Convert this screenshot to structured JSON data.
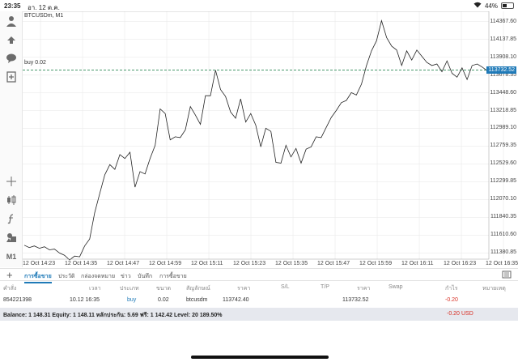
{
  "status": {
    "time": "23:35",
    "date": "อา. 12 ต.ค.",
    "battery": "44%",
    "battery_level": 0.44,
    "wifi_icon": "wifi-icon"
  },
  "toolbar": {
    "tools": [
      "person-icon",
      "trade-icon",
      "chat-icon",
      "add-chart-icon",
      "crosshair-icon",
      "candlestick-icon",
      "indicator-icon",
      "objects-icon",
      "timeframe-label"
    ],
    "timeframe": "M1"
  },
  "chart": {
    "symbol": "BTCUSDm, M1",
    "position_label": "buy 0.02",
    "current_price": "113732.52",
    "colors": {
      "line": "#222222",
      "position": "#2e8b57",
      "price_tag": "#1f7ab8",
      "grid": "#e6e6e6"
    }
  },
  "chart_data": {
    "type": "line",
    "title": "",
    "xlabel": "",
    "ylabel": "",
    "y_ticks": [
      "114367.60",
      "114137.85",
      "113908.10",
      "113678.35",
      "113448.60",
      "113218.85",
      "112989.10",
      "112759.35",
      "112529.60",
      "112299.85",
      "112070.10",
      "111840.35",
      "111610.60",
      "111380.85"
    ],
    "x_ticks": [
      "12 Oct 14:23",
      "12 Oct 14:35",
      "12 Oct 14:47",
      "12 Oct 14:59",
      "12 Oct 15:11",
      "12 Oct 15:23",
      "12 Oct 15:35",
      "12 Oct 15:47",
      "12 Oct 15:59",
      "12 Oct 16:11",
      "12 Oct 16:23",
      "12 Oct 16:35"
    ],
    "ylim": [
      111300,
      114500
    ],
    "grid": true,
    "horizontal_line": 113742.4,
    "series": [
      {
        "values": [
          111480,
          111450,
          111470,
          111440,
          111460,
          111420,
          111430,
          111380,
          111350,
          111290,
          111340,
          111330,
          111470,
          111560,
          111900,
          112150,
          112390,
          112520,
          112460,
          112650,
          112600,
          112680,
          112230,
          112430,
          112400,
          112600,
          112770,
          113240,
          113180,
          112840,
          112880,
          112870,
          112970,
          113270,
          113160,
          113040,
          113410,
          113410,
          113740,
          113490,
          113400,
          113200,
          113120,
          113370,
          113070,
          113180,
          113030,
          112750,
          112990,
          112950,
          112550,
          112540,
          112770,
          112620,
          112730,
          112540,
          112720,
          112750,
          112880,
          112870,
          113000,
          113130,
          113220,
          113320,
          113350,
          113450,
          113420,
          113560,
          113800,
          113990,
          114120,
          114380,
          114160,
          114050,
          114000,
          113800,
          113990,
          113870,
          114000,
          113920,
          113840,
          113800,
          113820,
          113720,
          113860,
          113700,
          113650,
          113770,
          113620,
          113800,
          113820,
          113780,
          113732
        ]
      }
    ]
  },
  "tabs": {
    "items": [
      "การซื้อขาย",
      "ประวัติ",
      "กล่องจดหมาย",
      "ข่าว",
      "บันทึก",
      "การซื้อขาย"
    ],
    "active_index": 0
  },
  "table": {
    "headers": [
      "คำสั่ง",
      "เวลา",
      "ประเภท",
      "ขนาด",
      "สัญลักษณ์",
      "ราคา",
      "S/L",
      "T/P",
      "ราคา",
      "Swap",
      "กำไร",
      "หมายเหตุ"
    ],
    "rows": [
      {
        "order": "854221398",
        "time": "10.12 16:35",
        "type": "buy",
        "volume": "0.02",
        "symbol": "btcusdm",
        "open_price": "113742.40",
        "sl": "",
        "tp": "",
        "price": "113732.52",
        "swap": "",
        "profit": "-0.20"
      }
    ]
  },
  "balance": {
    "text": "Balance: 1 148.31 Equity: 1 148.11 หลักประกัน: 5.69 ฟรี: 1 142.42 Level: 20 189.50%",
    "profit": "-0.20",
    "currency": "USD"
  }
}
